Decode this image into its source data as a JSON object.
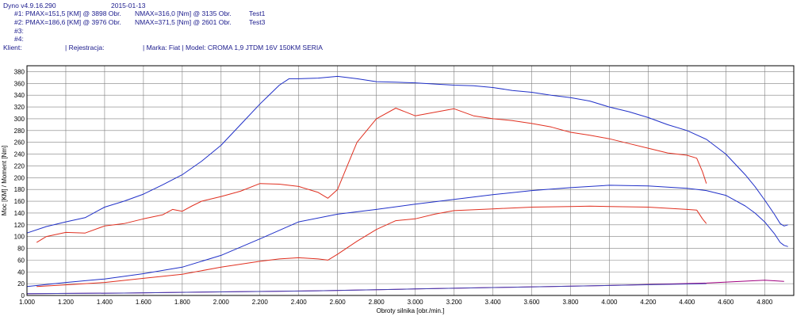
{
  "header": {
    "app_version": "Dyno v4.9.16.290",
    "date": "2015-01-13",
    "run1_id": "#1:",
    "run1_pmax": "PMAX=151,5 [KM] @ 3898 Obr.",
    "run1_nmax": "NMAX=316,0 [Nm] @ 3135 Obr.",
    "run1_name": "Test1",
    "run2_id": "#2:",
    "run2_pmax": "PMAX=186,6 [KM] @ 3976 Obr.",
    "run2_nmax": "NMAX=371,5 [Nm] @ 2601 Obr.",
    "run2_name": "Test3",
    "run3_id": "#3:",
    "run4_id": "#4:",
    "client_label": "Klient:",
    "registration_label": "| Rejestracja:",
    "vehicle_info": "| Marka: Fiat | Model: CROMA 1,9 JTDM 16V 150KM SERIA"
  },
  "colors": {
    "test1": "#e03020",
    "test3": "#2030c8",
    "grid": "#808080",
    "loss": "#a00080"
  },
  "chart_data": {
    "type": "line",
    "title": "",
    "xlabel": "Obroty silnika [obr./min.]",
    "ylabel": "Moc [KM] / Moment [Nm]",
    "xlim": [
      1000,
      4950
    ],
    "ylim": [
      0,
      390
    ],
    "x_ticks": [
      "1.000",
      "1.200",
      "1.400",
      "1.600",
      "1.800",
      "2.000",
      "2.200",
      "2.400",
      "2.600",
      "2.800",
      "3.000",
      "3.200",
      "3.400",
      "3.600",
      "3.800",
      "4.000",
      "4.200",
      "4.400",
      "4.600",
      "4.800"
    ],
    "y_ticks": [
      "0",
      "20",
      "40",
      "60",
      "80",
      "100",
      "120",
      "140",
      "160",
      "180",
      "200",
      "220",
      "240",
      "260",
      "280",
      "300",
      "320",
      "340",
      "360",
      "380"
    ],
    "grid": true,
    "series": [
      {
        "key": "test3_torque",
        "color": "#2030c8",
        "x": [
          1000,
          1100,
          1200,
          1300,
          1400,
          1500,
          1600,
          1700,
          1800,
          1900,
          2000,
          2100,
          2200,
          2300,
          2350,
          2400,
          2500,
          2600,
          2700,
          2800,
          2900,
          3000,
          3100,
          3200,
          3300,
          3400,
          3500,
          3600,
          3700,
          3800,
          3900,
          4000,
          4100,
          4200,
          4300,
          4400,
          4500,
          4600,
          4700,
          4750,
          4800,
          4850,
          4880,
          4900,
          4920
        ],
        "y": [
          106,
          117,
          125,
          132,
          150,
          160,
          172,
          188,
          205,
          228,
          255,
          290,
          325,
          357,
          368,
          368,
          369,
          372,
          368,
          363,
          362,
          361,
          359,
          357,
          356,
          353,
          348,
          345,
          340,
          336,
          330,
          320,
          312,
          302,
          290,
          280,
          265,
          240,
          205,
          185,
          162,
          138,
          122,
          118,
          120
        ]
      },
      {
        "key": "test3_power",
        "color": "#2030c8",
        "x": [
          1000,
          1200,
          1400,
          1600,
          1800,
          2000,
          2200,
          2400,
          2600,
          2800,
          3000,
          3200,
          3400,
          3600,
          3800,
          4000,
          4200,
          4400,
          4500,
          4600,
          4700,
          4750,
          4800,
          4850,
          4880,
          4900,
          4920
        ],
        "y": [
          15,
          22,
          28,
          37,
          48,
          68,
          96,
          125,
          138,
          146,
          155,
          163,
          171,
          178,
          183,
          187,
          186,
          182,
          178,
          170,
          152,
          140,
          125,
          105,
          90,
          85,
          83
        ]
      },
      {
        "key": "test1_torque",
        "color": "#e03020",
        "x": [
          1050,
          1100,
          1200,
          1300,
          1400,
          1500,
          1600,
          1700,
          1750,
          1800,
          1850,
          1900,
          2000,
          2100,
          2200,
          2300,
          2400,
          2500,
          2550,
          2600,
          2650,
          2700,
          2800,
          2900,
          3000,
          3100,
          3200,
          3300,
          3400,
          3500,
          3600,
          3700,
          3800,
          3900,
          4000,
          4100,
          4200,
          4300,
          4400,
          4450,
          4480,
          4500
        ],
        "y": [
          90,
          100,
          107,
          106,
          118,
          122,
          130,
          137,
          146,
          143,
          152,
          160,
          168,
          177,
          190,
          189,
          185,
          175,
          165,
          180,
          220,
          260,
          300,
          318,
          305,
          311,
          317,
          305,
          300,
          297,
          292,
          286,
          277,
          272,
          266,
          258,
          250,
          242,
          238,
          233,
          210,
          190
        ]
      },
      {
        "key": "test1_power",
        "color": "#e03020",
        "x": [
          1050,
          1200,
          1400,
          1600,
          1800,
          2000,
          2200,
          2300,
          2400,
          2500,
          2550,
          2600,
          2700,
          2800,
          2900,
          3000,
          3100,
          3200,
          3400,
          3600,
          3800,
          3900,
          4000,
          4200,
          4400,
          4450,
          4480,
          4500
        ],
        "y": [
          15,
          18,
          22,
          29,
          36,
          48,
          58,
          62,
          64,
          62,
          60,
          70,
          92,
          112,
          127,
          130,
          138,
          144,
          147,
          150,
          151,
          151.5,
          151,
          150,
          146,
          145,
          130,
          122
        ]
      },
      {
        "key": "loss_1",
        "color": "#a00080",
        "x": [
          1000,
          1500,
          2000,
          2500,
          3000,
          3500,
          4000,
          4500,
          4800,
          4900
        ],
        "y": [
          3,
          4,
          6,
          8,
          11,
          14,
          17,
          21,
          26,
          24
        ]
      },
      {
        "key": "loss_2",
        "color": "#4040b0",
        "x": [
          1000,
          1500,
          2000,
          2500,
          3000,
          3500,
          4000,
          4500
        ],
        "y": [
          3,
          4,
          6,
          8,
          11,
          14,
          17,
          20
        ]
      }
    ]
  }
}
